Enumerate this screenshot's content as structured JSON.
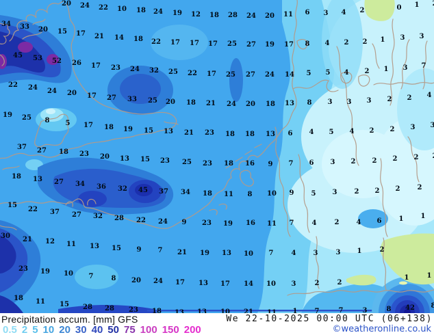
{
  "footer": {
    "title": "Precipitation accum. [mm] GFS",
    "datetime": "We 22-10-2025 00:00 UTC (06+138)",
    "copyright": "©weatheronline.co.uk",
    "legend": [
      {
        "label": "0.5",
        "color": "#8fdcf4"
      },
      {
        "label": "2",
        "color": "#70cdf0"
      },
      {
        "label": "5",
        "color": "#58bfea"
      },
      {
        "label": "10",
        "color": "#46a5e0"
      },
      {
        "label": "20",
        "color": "#3c86d4"
      },
      {
        "label": "30",
        "color": "#3a64c8"
      },
      {
        "label": "40",
        "color": "#3048bc"
      },
      {
        "label": "50",
        "color": "#2230a4"
      },
      {
        "label": "75",
        "color": "#8832aa"
      },
      {
        "label": "100",
        "color": "#c93ec0"
      },
      {
        "label": "150",
        "color": "#d634c6"
      },
      {
        "label": "200",
        "color": "#e52cce"
      }
    ]
  },
  "map": {
    "unit": "mm",
    "values": [
      [
        91,
        3,
        "20"
      ],
      [
        118,
        6,
        "24"
      ],
      [
        145,
        9,
        "22"
      ],
      [
        172,
        11,
        "10"
      ],
      [
        200,
        13,
        "18"
      ],
      [
        225,
        15,
        "24"
      ],
      [
        253,
        17,
        "19"
      ],
      [
        280,
        19,
        "12"
      ],
      [
        307,
        20,
        "18"
      ],
      [
        334,
        20,
        "28"
      ],
      [
        361,
        21,
        "24"
      ],
      [
        388,
        21,
        "20"
      ],
      [
        415,
        19,
        "11"
      ],
      [
        443,
        16,
        "6"
      ],
      [
        470,
        17,
        "3"
      ],
      [
        496,
        16,
        "4"
      ],
      [
        523,
        13,
        "2"
      ],
      [
        577,
        9,
        "0"
      ],
      [
        603,
        5,
        "1"
      ],
      [
        629,
        3,
        "2"
      ],
      [
        3,
        33,
        "34"
      ],
      [
        30,
        37,
        "33"
      ],
      [
        57,
        41,
        "20"
      ],
      [
        85,
        44,
        "15"
      ],
      [
        112,
        47,
        "17"
      ],
      [
        139,
        51,
        "21"
      ],
      [
        168,
        53,
        "14"
      ],
      [
        196,
        55,
        "18"
      ],
      [
        222,
        59,
        "22"
      ],
      [
        250,
        60,
        "17"
      ],
      [
        278,
        61,
        "17"
      ],
      [
        305,
        62,
        "17"
      ],
      [
        333,
        62,
        "25"
      ],
      [
        361,
        63,
        "27"
      ],
      [
        388,
        63,
        "19"
      ],
      [
        416,
        63,
        "17"
      ],
      [
        443,
        62,
        "8"
      ],
      [
        472,
        61,
        "4"
      ],
      [
        500,
        60,
        "2"
      ],
      [
        527,
        59,
        "2"
      ],
      [
        553,
        56,
        "1"
      ],
      [
        582,
        53,
        "3"
      ],
      [
        610,
        51,
        "3"
      ],
      [
        20,
        79,
        "45"
      ],
      [
        49,
        83,
        "53"
      ],
      [
        77,
        87,
        "52"
      ],
      [
        106,
        90,
        "26"
      ],
      [
        134,
        94,
        "17"
      ],
      [
        163,
        97,
        "23"
      ],
      [
        191,
        99,
        "24"
      ],
      [
        219,
        101,
        "32"
      ],
      [
        247,
        103,
        "25"
      ],
      [
        275,
        105,
        "22"
      ],
      [
        303,
        106,
        "17"
      ],
      [
        331,
        107,
        "25"
      ],
      [
        360,
        107,
        "27"
      ],
      [
        388,
        107,
        "24"
      ],
      [
        417,
        107,
        "14"
      ],
      [
        445,
        105,
        "5"
      ],
      [
        473,
        104,
        "5"
      ],
      [
        500,
        104,
        "4"
      ],
      [
        530,
        102,
        "2"
      ],
      [
        558,
        99,
        "1"
      ],
      [
        586,
        97,
        "3"
      ],
      [
        613,
        94,
        "7"
      ],
      [
        13,
        122,
        "22"
      ],
      [
        42,
        126,
        "24"
      ],
      [
        70,
        131,
        "24"
      ],
      [
        99,
        134,
        "20"
      ],
      [
        128,
        138,
        "17"
      ],
      [
        157,
        141,
        "27"
      ],
      [
        187,
        143,
        "33"
      ],
      [
        217,
        145,
        "25"
      ],
      [
        243,
        147,
        "20"
      ],
      [
        273,
        148,
        "18"
      ],
      [
        302,
        149,
        "21"
      ],
      [
        332,
        150,
        "24"
      ],
      [
        360,
        150,
        "20"
      ],
      [
        389,
        150,
        "18"
      ],
      [
        417,
        149,
        "13"
      ],
      [
        446,
        148,
        "8"
      ],
      [
        476,
        147,
        "3"
      ],
      [
        504,
        147,
        "3"
      ],
      [
        533,
        145,
        "3"
      ],
      [
        563,
        143,
        "2"
      ],
      [
        592,
        141,
        "2"
      ],
      [
        621,
        137,
        "4"
      ],
      [
        5,
        166,
        "19"
      ],
      [
        33,
        170,
        "25"
      ],
      [
        63,
        174,
        "8"
      ],
      [
        93,
        178,
        "5"
      ],
      [
        123,
        181,
        "17"
      ],
      [
        153,
        184,
        "18"
      ],
      [
        181,
        187,
        "19"
      ],
      [
        211,
        189,
        "15"
      ],
      [
        240,
        190,
        "13"
      ],
      [
        270,
        192,
        "21"
      ],
      [
        300,
        192,
        "23"
      ],
      [
        330,
        194,
        "18"
      ],
      [
        359,
        194,
        "18"
      ],
      [
        389,
        194,
        "13"
      ],
      [
        418,
        193,
        "6"
      ],
      [
        449,
        191,
        "4"
      ],
      [
        478,
        191,
        "5"
      ],
      [
        508,
        190,
        "4"
      ],
      [
        537,
        189,
        "2"
      ],
      [
        567,
        187,
        "2"
      ],
      [
        597,
        184,
        "3"
      ],
      [
        626,
        181,
        "3"
      ],
      [
        26,
        213,
        "37"
      ],
      [
        55,
        218,
        "27"
      ],
      [
        87,
        220,
        "18"
      ],
      [
        117,
        223,
        "23"
      ],
      [
        147,
        227,
        "20"
      ],
      [
        176,
        230,
        "13"
      ],
      [
        206,
        231,
        "15"
      ],
      [
        235,
        233,
        "23"
      ],
      [
        267,
        235,
        "25"
      ],
      [
        297,
        237,
        "23"
      ],
      [
        328,
        237,
        "18"
      ],
      [
        359,
        237,
        "16"
      ],
      [
        389,
        238,
        "9"
      ],
      [
        419,
        237,
        "7"
      ],
      [
        449,
        236,
        "6"
      ],
      [
        480,
        235,
        "3"
      ],
      [
        510,
        234,
        "2"
      ],
      [
        541,
        233,
        "2"
      ],
      [
        571,
        230,
        "2"
      ],
      [
        602,
        228,
        "2"
      ],
      [
        629,
        226,
        "2"
      ],
      [
        18,
        256,
        "18"
      ],
      [
        49,
        260,
        "13"
      ],
      [
        80,
        264,
        "27"
      ],
      [
        111,
        267,
        "34"
      ],
      [
        142,
        271,
        "36"
      ],
      [
        173,
        274,
        "32"
      ],
      [
        203,
        276,
        "45"
      ],
      [
        233,
        278,
        "37"
      ],
      [
        265,
        279,
        "34"
      ],
      [
        297,
        281,
        "18"
      ],
      [
        328,
        282,
        "11"
      ],
      [
        359,
        282,
        "8"
      ],
      [
        391,
        281,
        "10"
      ],
      [
        420,
        280,
        "9"
      ],
      [
        452,
        281,
        "5"
      ],
      [
        483,
        279,
        "3"
      ],
      [
        515,
        278,
        "2"
      ],
      [
        545,
        277,
        "2"
      ],
      [
        575,
        274,
        "2"
      ],
      [
        607,
        272,
        "2"
      ],
      [
        12,
        298,
        "15"
      ],
      [
        42,
        304,
        "22"
      ],
      [
        74,
        308,
        "37"
      ],
      [
        106,
        312,
        "27"
      ],
      [
        137,
        314,
        "32"
      ],
      [
        168,
        317,
        "28"
      ],
      [
        200,
        320,
        "22"
      ],
      [
        232,
        322,
        "24"
      ],
      [
        263,
        323,
        "9"
      ],
      [
        296,
        324,
        "23"
      ],
      [
        327,
        325,
        "19"
      ],
      [
        360,
        324,
        "16"
      ],
      [
        391,
        325,
        "11"
      ],
      [
        420,
        324,
        "7"
      ],
      [
        453,
        324,
        "4"
      ],
      [
        486,
        323,
        "2"
      ],
      [
        518,
        323,
        "4"
      ],
      [
        548,
        321,
        "6"
      ],
      [
        580,
        318,
        "1"
      ],
      [
        612,
        314,
        "1"
      ],
      [
        2,
        343,
        "30"
      ],
      [
        34,
        348,
        "21"
      ],
      [
        67,
        351,
        "12"
      ],
      [
        98,
        355,
        "11"
      ],
      [
        132,
        358,
        "13"
      ],
      [
        164,
        361,
        "15"
      ],
      [
        197,
        363,
        "9"
      ],
      [
        228,
        364,
        "7"
      ],
      [
        260,
        367,
        "21"
      ],
      [
        293,
        368,
        "19"
      ],
      [
        325,
        368,
        "13"
      ],
      [
        357,
        369,
        "10"
      ],
      [
        390,
        368,
        "7"
      ],
      [
        423,
        368,
        "4"
      ],
      [
        455,
        368,
        "3"
      ],
      [
        488,
        367,
        "3"
      ],
      [
        519,
        365,
        "1"
      ],
      [
        552,
        363,
        "2"
      ],
      [
        28,
        391,
        "23"
      ],
      [
        60,
        395,
        "19"
      ],
      [
        94,
        398,
        "10"
      ],
      [
        127,
        402,
        "7"
      ],
      [
        160,
        405,
        "8"
      ],
      [
        193,
        408,
        "20"
      ],
      [
        225,
        409,
        "24"
      ],
      [
        257,
        411,
        "17"
      ],
      [
        291,
        412,
        "13"
      ],
      [
        323,
        413,
        "17"
      ],
      [
        357,
        413,
        "14"
      ],
      [
        390,
        413,
        "10"
      ],
      [
        423,
        413,
        "3"
      ],
      [
        457,
        412,
        "2"
      ],
      [
        490,
        411,
        "2"
      ],
      [
        588,
        404,
        "1"
      ],
      [
        621,
        401,
        "1"
      ],
      [
        21,
        434,
        "18"
      ],
      [
        53,
        439,
        "11"
      ],
      [
        88,
        443,
        "15"
      ],
      [
        122,
        447,
        "28"
      ],
      [
        154,
        449,
        "28"
      ],
      [
        189,
        451,
        "23"
      ],
      [
        223,
        453,
        "18"
      ],
      [
        256,
        455,
        "13"
      ],
      [
        289,
        454,
        "13"
      ],
      [
        323,
        454,
        "10"
      ],
      [
        357,
        454,
        "21"
      ],
      [
        391,
        455,
        "11"
      ],
      [
        425,
        453,
        "1"
      ],
      [
        457,
        453,
        "7"
      ],
      [
        492,
        452,
        "7"
      ],
      [
        527,
        452,
        "3"
      ],
      [
        562,
        450,
        "8"
      ],
      [
        593,
        448,
        "42"
      ],
      [
        627,
        445,
        "8"
      ]
    ]
  }
}
